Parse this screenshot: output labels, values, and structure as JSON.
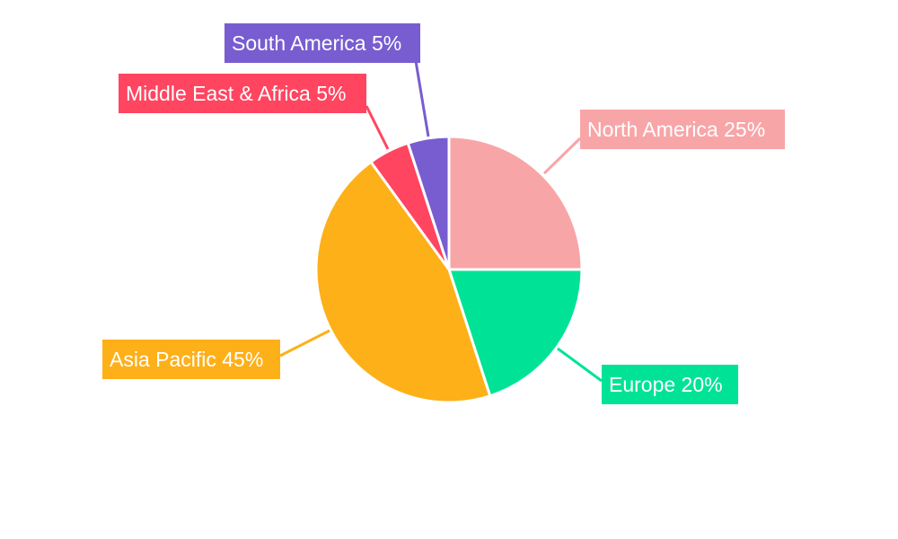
{
  "chart_data": {
    "type": "pie",
    "title": "",
    "categories": [
      "North America",
      "Europe",
      "Asia Pacific",
      "Middle East & Africa",
      "South America"
    ],
    "values": [
      25,
      20,
      45,
      5,
      5
    ],
    "labels": [
      "North America 25%",
      "Europe 20%",
      "Asia Pacific 45%",
      "Middle East & Africa 5%",
      "South America 5%"
    ],
    "colors": [
      "#F8A5A7",
      "#00E396",
      "#FEB019",
      "#FF4560",
      "#775DD0"
    ],
    "start_angle": "12 o'clock",
    "direction": "clockwise",
    "legend": "none"
  }
}
